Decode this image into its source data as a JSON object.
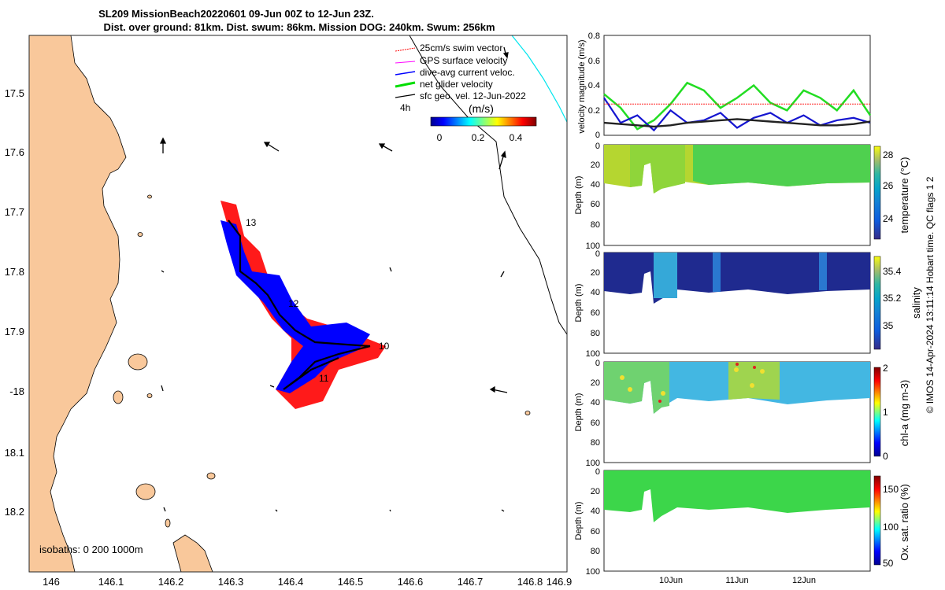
{
  "header": {
    "title_line1": "SL209 MissionBeach20220601 09-Jun 00Z to 12-Jun 23Z.",
    "title_line2": "Dist. over ground: 81km. Dist. swum: 86km. Mission DOG: 240km. Swum: 256km"
  },
  "map": {
    "lon_ticks": [
      "146",
      "146.1",
      "146.2",
      "146.3",
      "146.4",
      "146.5",
      "146.6",
      "146.7",
      "146.8",
      "146.9"
    ],
    "lat_ticks": [
      "17.5",
      "17.6",
      "17.7",
      "17.8",
      "17.9",
      "-18",
      "18.1",
      "18.2"
    ],
    "isobath_label": "isobaths: 0   200  1000m",
    "day_labels": [
      "13",
      "12",
      "10",
      "11"
    ],
    "legend": [
      {
        "label": "25cm/s swim vector",
        "color": "#ff0000"
      },
      {
        "label": "GPS surface velocity",
        "color": "#ff00ff"
      },
      {
        "label": "dive-avg current veloc.",
        "color": "#0000ff"
      },
      {
        "label": "net glider velocity",
        "color": "#00dd00"
      },
      {
        "label": "sfc geo. vel. 12-Jun-2022",
        "color": "#000000"
      }
    ],
    "legend_4h": "4h",
    "colorbar_title": "(m/s)",
    "colorbar_ticks": [
      "0",
      "0.2",
      "0.4"
    ],
    "land_color": "#f9c89b"
  },
  "panels": {
    "velocity": {
      "ylabel": "velocity magnitude (m/s)",
      "yticks": [
        "0",
        "0.2",
        "0.4",
        "0.6",
        "0.8"
      ]
    },
    "temperature": {
      "ylabel": "Depth (m)",
      "cblabel": "temperature (°C)",
      "cbticks": [
        "28",
        "26",
        "24"
      ],
      "depth_ticks": [
        "0",
        "20",
        "40",
        "60",
        "80",
        "100"
      ]
    },
    "salinity": {
      "ylabel": "Depth (m)",
      "cblabel": "salinity",
      "cbticks": [
        "35.4",
        "35.2",
        "35"
      ],
      "depth_ticks": [
        "0",
        "20",
        "40",
        "60",
        "80",
        "100"
      ]
    },
    "chla": {
      "ylabel": "Depth (m)",
      "cblabel": "chl-a (mg m-3)",
      "cbticks": [
        "2",
        "1",
        "0"
      ],
      "depth_ticks": [
        "0",
        "20",
        "40",
        "60",
        "80",
        "100"
      ]
    },
    "oxygen": {
      "ylabel": "Depth (m)",
      "cblabel": "Ox. sat. ratio (%)",
      "cbticks": [
        "150",
        "100",
        "50"
      ],
      "depth_ticks": [
        "0",
        "20",
        "40",
        "60",
        "80",
        "100"
      ]
    },
    "time_ticks": [
      "10Jun",
      "11Jun",
      "12Jun"
    ]
  },
  "footer": {
    "credit": "© IMOS 14-Apr-2024 13:11:14 Hobart time. QC flags 1  2"
  },
  "chart_data": {
    "type": "line",
    "title": "velocity magnitude (m/s)",
    "x": [
      0,
      0.25,
      0.5,
      0.75,
      1,
      1.25,
      1.5,
      1.75,
      2,
      2.25,
      2.5,
      2.75,
      3,
      3.25,
      3.5,
      3.75,
      4
    ],
    "ylim": [
      0,
      0.8
    ],
    "series": [
      {
        "name": "net glider velocity",
        "values": [
          0.33,
          0.22,
          0.05,
          0.12,
          0.25,
          0.42,
          0.36,
          0.22,
          0.3,
          0.4,
          0.26,
          0.2,
          0.36,
          0.3,
          0.2,
          0.36,
          0.16
        ]
      },
      {
        "name": "dive-avg current veloc.",
        "values": [
          0.3,
          0.1,
          0.16,
          0.04,
          0.2,
          0.1,
          0.12,
          0.18,
          0.06,
          0.14,
          0.18,
          0.1,
          0.16,
          0.08,
          0.12,
          0.14,
          0.1
        ]
      },
      {
        "name": "sfc geo. vel.",
        "values": [
          0.1,
          0.09,
          0.08,
          0.07,
          0.08,
          0.1,
          0.11,
          0.12,
          0.13,
          0.12,
          0.11,
          0.1,
          0.09,
          0.08,
          0.08,
          0.09,
          0.11
        ]
      },
      {
        "name": "25cm/s swim vector",
        "values": [
          0.25,
          0.25,
          0.25,
          0.25,
          0.25,
          0.25,
          0.25,
          0.25,
          0.25,
          0.25,
          0.25,
          0.25,
          0.25,
          0.25,
          0.25,
          0.25,
          0.25
        ]
      }
    ]
  }
}
